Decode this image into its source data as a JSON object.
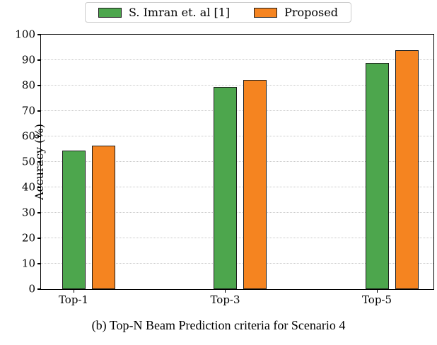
{
  "chart_data": {
    "type": "bar",
    "categories": [
      "Top-1",
      "Top-3",
      "Top-5"
    ],
    "series": [
      {
        "name": "S. Imran et. al [1]",
        "color": "#4DA64D",
        "values": [
          54.5,
          79.5,
          88.8
        ]
      },
      {
        "name": "Proposed",
        "color": "#F58420",
        "values": [
          56.5,
          82.3,
          93.8
        ]
      }
    ],
    "title": "",
    "xlabel": "",
    "ylabel": "Accuracy (%)",
    "ylim": [
      0,
      100
    ],
    "ytick_step": 10,
    "yticklabels": [
      "0",
      "10",
      "20",
      "30",
      "40",
      "50",
      "60",
      "70",
      "80",
      "90",
      "100"
    ],
    "grid": "horizontal-dotted",
    "legend_position": "top-center",
    "bar_edge_color": "#1b1b1b"
  },
  "caption": "(b) Top-N Beam Prediction criteria for Scenario 4"
}
